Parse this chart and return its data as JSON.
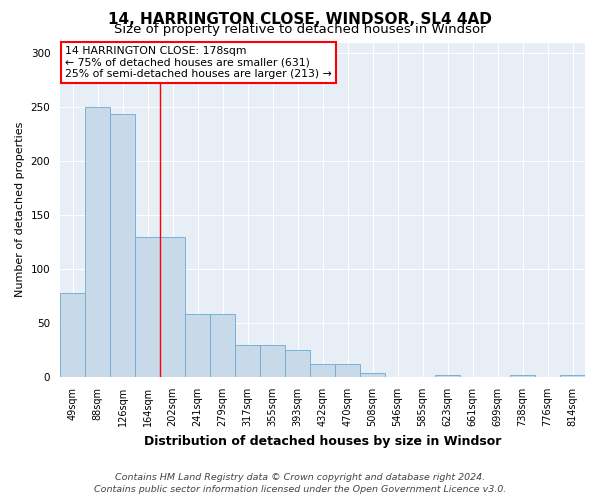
{
  "title_line1": "14, HARRINGTON CLOSE, WINDSOR, SL4 4AD",
  "title_line2": "Size of property relative to detached houses in Windsor",
  "xlabel": "Distribution of detached houses by size in Windsor",
  "ylabel": "Number of detached properties",
  "categories": [
    "49sqm",
    "88sqm",
    "126sqm",
    "164sqm",
    "202sqm",
    "241sqm",
    "279sqm",
    "317sqm",
    "355sqm",
    "393sqm",
    "432sqm",
    "470sqm",
    "508sqm",
    "546sqm",
    "585sqm",
    "623sqm",
    "661sqm",
    "699sqm",
    "738sqm",
    "776sqm",
    "814sqm"
  ],
  "values": [
    78,
    250,
    244,
    130,
    130,
    58,
    58,
    30,
    30,
    25,
    12,
    12,
    4,
    0,
    0,
    2,
    0,
    0,
    2,
    0,
    2
  ],
  "bar_color": "#c8daea",
  "bar_edge_color": "#6aaad4",
  "red_line_x": 3.5,
  "annotation_text": "14 HARRINGTON CLOSE: 178sqm\n← 75% of detached houses are smaller (631)\n25% of semi-detached houses are larger (213) →",
  "annotation_box_color": "white",
  "annotation_box_edge_color": "red",
  "red_line_color": "red",
  "ylim": [
    0,
    310
  ],
  "yticks": [
    0,
    50,
    100,
    150,
    200,
    250,
    300
  ],
  "background_color": "#e8eef6",
  "grid_color": "white",
  "footer_line1": "Contains HM Land Registry data © Crown copyright and database right 2024.",
  "footer_line2": "Contains public sector information licensed under the Open Government Licence v3.0.",
  "title_fontsize": 11,
  "subtitle_fontsize": 9.5,
  "annotation_fontsize": 7.8,
  "footer_fontsize": 6.8,
  "ylabel_fontsize": 8,
  "xlabel_fontsize": 9,
  "tick_fontsize": 7,
  "ytick_fontsize": 7.5
}
